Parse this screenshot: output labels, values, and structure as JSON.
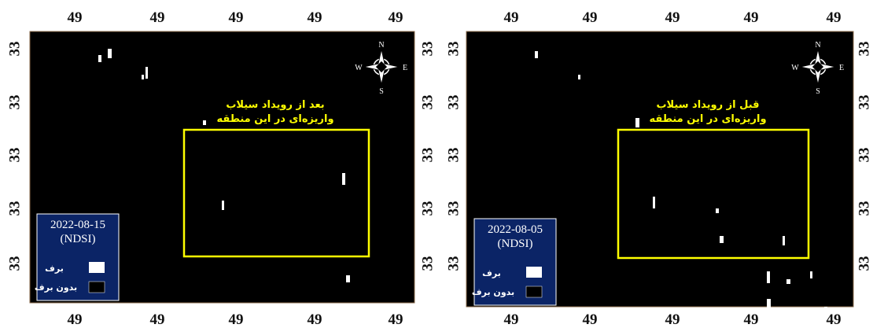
{
  "panels": [
    {
      "top_ticks": [
        "49",
        "49",
        "49",
        "49",
        "49"
      ],
      "bottom_ticks": [
        "49",
        "49",
        "49",
        "49",
        "49"
      ],
      "left_ticks": [
        "33",
        "33",
        "33",
        "33",
        "33"
      ],
      "right_ticks": [
        "33",
        "33",
        "33",
        "33",
        "33"
      ],
      "annotation": [
        "بعد از رویداد سیلاب",
        "واریزه‌ای در این منطقه"
      ],
      "date": "2022-08-15",
      "index": "(NDSI)",
      "legend": [
        {
          "label": "برف"
        },
        {
          "label": "بدون برف"
        }
      ],
      "compass": {
        "n": "N",
        "s": "S",
        "w": "W",
        "e": "E"
      }
    },
    {
      "top_ticks": [
        "49",
        "49",
        "49",
        "49",
        "49"
      ],
      "bottom_ticks": [
        "49",
        "49",
        "49",
        "49",
        "49"
      ],
      "left_ticks": [
        "33",
        "33",
        "33",
        "33",
        "33"
      ],
      "right_ticks": [
        "33",
        "33",
        "33",
        "33",
        "33"
      ],
      "annotation": [
        "قبل از رویداد سیلاب",
        "واریزه‌ای در این منطقه"
      ],
      "date": "2022-08-05",
      "index": "(NDSI)",
      "legend": [
        {
          "label": "برف"
        },
        {
          "label": "بدون برف"
        }
      ],
      "compass": {
        "n": "N",
        "s": "S",
        "w": "W",
        "e": "E"
      }
    }
  ]
}
